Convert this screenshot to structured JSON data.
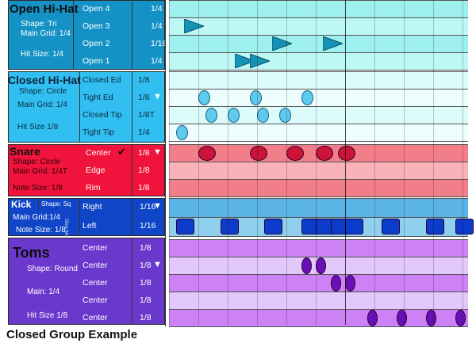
{
  "caption": "Closed Group Example",
  "colors": {
    "hihat_open": {
      "panel": "#1492c5",
      "lane_a": "#9ef0ee",
      "lane_b": "#bef8f5",
      "note": "#1593b4"
    },
    "hihat_closed": {
      "panel": "#30bff0",
      "lane_a": "#dcfbfb",
      "lane_b": "#eefdfd",
      "note": "#5ecaed"
    },
    "snare": {
      "panel": "#f0143c",
      "lane_a": "#f27e8a",
      "lane_b": "#f8b2b8",
      "note": "#cc1438"
    },
    "kick": {
      "panel": "#0f45c6",
      "lane_a": "#5bb4e6",
      "lane_b": "#8fd0ee",
      "note": "#0c3ccc"
    },
    "toms": {
      "panel": "#6b38cc",
      "lane_a": "#cc82f5",
      "lane_b": "#e3c8fb",
      "note": "#6a0fb8"
    }
  },
  "instruments": [
    {
      "key": "hihat_open",
      "title": "Open Hi-Hat",
      "props": [
        "Shape: Tri",
        "Main Grid: 1/4",
        "Hit Size: 1/4"
      ],
      "lanes": [
        {
          "name": "Open 4",
          "grid": "1/4",
          "notes": []
        },
        {
          "name": "Open 3",
          "grid": "1/4",
          "notes": [
            0.5
          ]
        },
        {
          "name": "Open 2",
          "grid": "1/16",
          "notes": [
            3.5,
            5.25
          ]
        },
        {
          "name": "Open 1",
          "grid": "1/4",
          "notes": [
            2.25,
            2.75
          ]
        }
      ]
    },
    {
      "key": "hihat_closed",
      "title": "Closed Hi-Hat",
      "props": [
        "Shape: Circle",
        "Main Grid: 1/4",
        "Hit Size 1/8"
      ],
      "lanes": [
        {
          "name": "Closed Ed",
          "grid": "1/8",
          "notes": []
        },
        {
          "name": "Tight Ed",
          "grid": "1/8",
          "dropdown": true,
          "notes": [
            1.0,
            2.75,
            4.5
          ]
        },
        {
          "name": "Closed Tip",
          "grid": "1/8T",
          "notes": [
            1.25,
            2.0,
            3.0,
            3.75
          ]
        },
        {
          "name": "Tight Tip",
          "grid": "1/4",
          "notes": [
            0.25
          ]
        }
      ]
    },
    {
      "key": "snare",
      "title": "Snare",
      "props": [
        "Shape: Circle",
        "Main Grid: 1/4T",
        "Note Size: 1/8"
      ],
      "lanes": [
        {
          "name": "Center",
          "grid": "1/8",
          "check": true,
          "dropdown": true,
          "notes": [
            1.0,
            2.75,
            4.0,
            5.0,
            5.75
          ]
        },
        {
          "name": "Edge",
          "grid": "1/8",
          "notes": []
        },
        {
          "name": "Rim",
          "grid": "1/8",
          "notes": []
        }
      ]
    },
    {
      "key": "kick",
      "title": "Kick",
      "props": [
        "Shape: Sq",
        "Main Grid:1/4",
        "Note Size: 1/8"
      ],
      "sideways": "Slice Mode",
      "lanes": [
        {
          "name": "Right",
          "grid": "1/16",
          "dropdown": true,
          "notes": []
        },
        {
          "name": "Left",
          "grid": "1/16",
          "notes": [
            0.25,
            1.75,
            3.25,
            4.5,
            5.0,
            5.5,
            6.0,
            7.25,
            8.75,
            9.75
          ]
        }
      ]
    },
    {
      "key": "toms",
      "title": "Toms",
      "props": [
        "Shape: Round",
        "Main: 1/4",
        "Hit Size 1/8"
      ],
      "lanes": [
        {
          "name": "Center",
          "grid": "1/8",
          "notes": []
        },
        {
          "name": "Center",
          "grid": "1/8",
          "dropdown": true,
          "notes": [
            4.5,
            5.0
          ]
        },
        {
          "name": "Center",
          "grid": "1/8",
          "notes": [
            5.5,
            6.0
          ]
        },
        {
          "name": "Center",
          "grid": "1/8",
          "notes": []
        },
        {
          "name": "Center",
          "grid": "1/8",
          "notes": [
            6.75,
            7.75,
            8.75,
            9.75
          ]
        }
      ]
    }
  ]
}
